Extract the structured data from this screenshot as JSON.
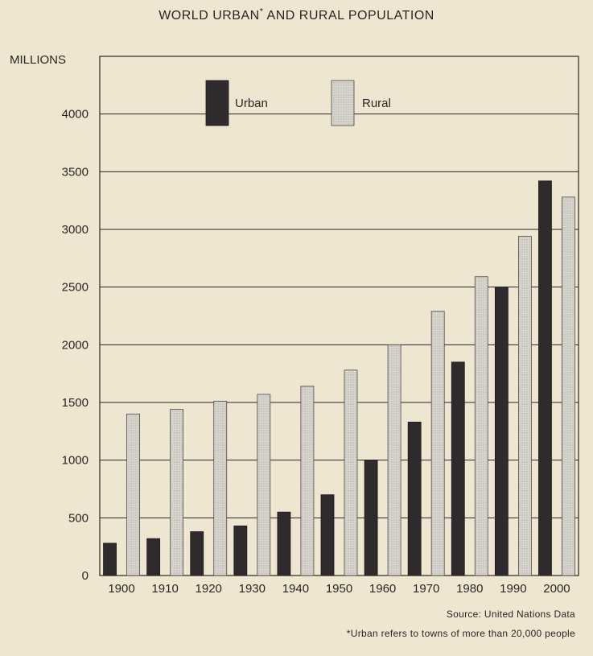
{
  "chart_data": {
    "type": "bar",
    "title": "WORLD URBAN AND RURAL POPULATION",
    "title_mark": "*",
    "ylabel": "MILLIONS",
    "xlabel": "",
    "categories": [
      "1900",
      "1910",
      "1920",
      "1930",
      "1940",
      "1950",
      "1960",
      "1970",
      "1980",
      "1990",
      "2000"
    ],
    "series": [
      {
        "name": "Urban",
        "color": "#2f2a2b",
        "values": [
          280,
          320,
          380,
          430,
          550,
          700,
          1000,
          1330,
          1850,
          2500,
          3420
        ]
      },
      {
        "name": "Rural",
        "color": "#d9d5cf",
        "values": [
          1400,
          1440,
          1510,
          1570,
          1640,
          1780,
          2000,
          2290,
          2590,
          2940,
          3280
        ]
      }
    ],
    "yticks": [
      0,
      500,
      1000,
      1500,
      2000,
      2500,
      3000,
      3500,
      4000
    ],
    "ylim": [
      0,
      4500
    ],
    "grid": true,
    "legend_position": "top-center",
    "source": "Source: United Nations Data",
    "footnote": "*Urban refers to towns of more than 20,000 people"
  }
}
